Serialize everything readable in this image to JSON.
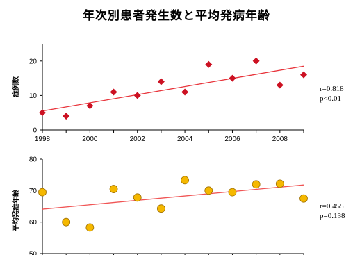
{
  "title": "年次別患者発生数と平均発病年齢",
  "chart_data": [
    {
      "type": "scatter",
      "ylabel": "症例数",
      "x": [
        1998,
        1999,
        2000,
        2001,
        2002,
        2003,
        2004,
        2005,
        2006,
        2007,
        2008,
        2009
      ],
      "y": [
        5,
        4,
        7,
        11,
        10,
        14,
        11,
        19,
        15,
        20,
        13,
        16
      ],
      "xlim": [
        1998,
        2009
      ],
      "ylim": [
        0,
        25
      ],
      "x_ticks": [
        1998,
        2000,
        2002,
        2004,
        2006,
        2008
      ],
      "x_tick_labels": [
        "1998",
        "2000",
        "2002",
        "2004",
        "2006",
        "2008"
      ],
      "y_ticks": [
        0,
        10,
        20
      ],
      "trendline": [
        [
          1998,
          5.5
        ],
        [
          2009,
          18.5
        ]
      ],
      "marker": "diamond",
      "marker_color": "#cc1122",
      "trend_color": "#e8333a",
      "stats": [
        "r=0.818",
        "p<0.01"
      ]
    },
    {
      "type": "scatter",
      "ylabel": "平均発症年齢",
      "x": [
        1998,
        1999,
        2000,
        2001,
        2002,
        2003,
        2004,
        2005,
        2006,
        2007,
        2008,
        2009
      ],
      "y": [
        69.5,
        60,
        58.3,
        70.5,
        67.8,
        64.3,
        73.3,
        70,
        69.5,
        72,
        72.2,
        67.5
      ],
      "xlim": [
        1998,
        2009
      ],
      "ylim": [
        50,
        80
      ],
      "y_ticks": [
        50,
        60,
        70,
        80
      ],
      "trendline": [
        [
          1998,
          64.1
        ],
        [
          2009,
          71.8
        ]
      ],
      "marker": "circle",
      "marker_color": "#f5b800",
      "marker_edge": "#a07000",
      "trend_color": "#f05555",
      "stats": [
        "r=0.455",
        "p=0.138"
      ]
    }
  ]
}
